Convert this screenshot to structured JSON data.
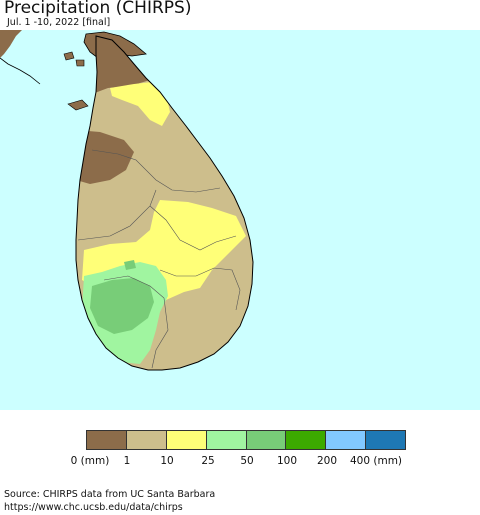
{
  "header": {
    "title": "Precipitation (CHIRPS)",
    "subtitle": "Jul. 1 -10, 2022 [final]"
  },
  "map": {
    "background_color": "#ccffff",
    "land_colors": {
      "0-1": "#8c6c4a",
      "1-10": "#cdbe8c",
      "10-25": "#ffff78",
      "25-50": "#a0f5a0",
      "50-100": "#78cd78"
    }
  },
  "legend": {
    "colors": [
      "#8c6c4a",
      "#cdbe8c",
      "#ffff78",
      "#a0f5a0",
      "#78cd78",
      "#3caa00",
      "#82c8ff",
      "#1e78b4"
    ],
    "labels": [
      "0 (mm)",
      "1",
      "10",
      "25",
      "50",
      "100",
      "200",
      "400 (mm)"
    ]
  },
  "source": {
    "line1": "Source: CHIRPS data from UC Santa Barbara",
    "line2": "https://www.chc.ucsb.edu/data/chirps"
  }
}
